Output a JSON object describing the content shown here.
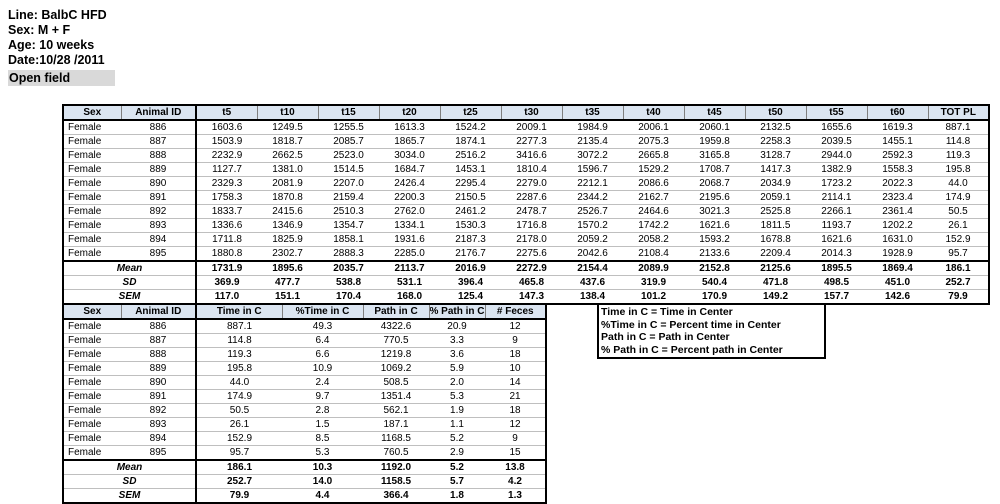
{
  "info": {
    "lines": [
      "Line: BalbC HFD",
      "Sex: M + F",
      "Age: 10 weeks",
      "Date:10/28 /2011"
    ],
    "highlight": "Open field"
  },
  "table1": {
    "headers": [
      "Sex",
      "Animal ID",
      "t5",
      "t10",
      "t15",
      "t20",
      "t25",
      "t30",
      "t35",
      "t40",
      "t45",
      "t50",
      "t55",
      "t60",
      "TOT PL"
    ],
    "rows": [
      {
        "sex": "Female",
        "id": "886",
        "values": [
          "1603.6",
          "1249.5",
          "1255.5",
          "1613.3",
          "1524.2",
          "2009.1",
          "1984.9",
          "2006.1",
          "2060.1",
          "2132.5",
          "1655.6",
          "1619.3",
          "887.1"
        ]
      },
      {
        "sex": "Female",
        "id": "887",
        "values": [
          "1503.9",
          "1818.7",
          "2085.7",
          "1865.7",
          "1874.1",
          "2277.3",
          "2135.4",
          "2075.3",
          "1959.8",
          "2258.3",
          "2039.5",
          "1455.1",
          "114.8"
        ]
      },
      {
        "sex": "Female",
        "id": "888",
        "values": [
          "2232.9",
          "2662.5",
          "2523.0",
          "3034.0",
          "2516.2",
          "3416.6",
          "3072.2",
          "2665.8",
          "3165.8",
          "3128.7",
          "2944.0",
          "2592.3",
          "119.3"
        ]
      },
      {
        "sex": "Female",
        "id": "889",
        "values": [
          "1127.7",
          "1381.0",
          "1514.5",
          "1684.7",
          "1453.1",
          "1810.4",
          "1596.7",
          "1529.2",
          "1708.7",
          "1417.3",
          "1382.9",
          "1558.3",
          "195.8"
        ]
      },
      {
        "sex": "Female",
        "id": "890",
        "values": [
          "2329.3",
          "2081.9",
          "2207.0",
          "2426.4",
          "2295.4",
          "2279.0",
          "2212.1",
          "2086.6",
          "2068.7",
          "2034.9",
          "1723.2",
          "2022.3",
          "44.0"
        ]
      },
      {
        "sex": "Female",
        "id": "891",
        "values": [
          "1758.3",
          "1870.8",
          "2159.4",
          "2200.3",
          "2150.5",
          "2287.6",
          "2344.2",
          "2162.7",
          "2195.6",
          "2059.1",
          "2114.1",
          "2323.4",
          "174.9"
        ]
      },
      {
        "sex": "Female",
        "id": "892",
        "values": [
          "1833.7",
          "2415.6",
          "2510.3",
          "2762.0",
          "2461.2",
          "2478.7",
          "2526.7",
          "2464.6",
          "3021.3",
          "2525.8",
          "2266.1",
          "2361.4",
          "50.5"
        ]
      },
      {
        "sex": "Female",
        "id": "893",
        "values": [
          "1336.6",
          "1346.9",
          "1354.7",
          "1334.1",
          "1530.3",
          "1716.8",
          "1570.2",
          "1742.2",
          "1621.6",
          "1811.5",
          "1193.7",
          "1202.2",
          "26.1"
        ]
      },
      {
        "sex": "Female",
        "id": "894",
        "values": [
          "1711.8",
          "1825.9",
          "1858.1",
          "1931.6",
          "2187.3",
          "2178.0",
          "2059.2",
          "2058.2",
          "1593.2",
          "1678.8",
          "1621.6",
          "1631.0",
          "152.9"
        ]
      },
      {
        "sex": "Female",
        "id": "895",
        "values": [
          "1880.8",
          "2302.7",
          "2888.3",
          "2285.0",
          "2176.7",
          "2275.6",
          "2042.6",
          "2108.4",
          "2133.6",
          "2209.4",
          "2014.3",
          "1928.9",
          "95.7"
        ]
      }
    ],
    "stats": [
      {
        "label": "Mean",
        "values": [
          "1731.9",
          "1895.6",
          "2035.7",
          "2113.7",
          "2016.9",
          "2272.9",
          "2154.4",
          "2089.9",
          "2152.8",
          "2125.6",
          "1895.5",
          "1869.4",
          "186.1"
        ]
      },
      {
        "label": "SD",
        "values": [
          "369.9",
          "477.7",
          "538.8",
          "531.1",
          "396.4",
          "465.8",
          "437.6",
          "319.9",
          "540.4",
          "471.8",
          "498.5",
          "451.0",
          "252.7"
        ]
      },
      {
        "label": "SEM",
        "values": [
          "117.0",
          "151.1",
          "170.4",
          "168.0",
          "125.4",
          "147.3",
          "138.4",
          "101.2",
          "170.9",
          "149.2",
          "157.7",
          "142.6",
          "79.9"
        ]
      }
    ]
  },
  "table2": {
    "headers": [
      "Sex",
      "Animal ID",
      "Time in C",
      "%Time in C",
      "Path in C",
      "% Path in C",
      "# Feces"
    ],
    "rows": [
      {
        "sex": "Female",
        "id": "886",
        "values": [
          "887.1",
          "49.3",
          "4322.6",
          "20.9",
          "12"
        ]
      },
      {
        "sex": "Female",
        "id": "887",
        "values": [
          "114.8",
          "6.4",
          "770.5",
          "3.3",
          "9"
        ]
      },
      {
        "sex": "Female",
        "id": "888",
        "values": [
          "119.3",
          "6.6",
          "1219.8",
          "3.6",
          "18"
        ]
      },
      {
        "sex": "Female",
        "id": "889",
        "values": [
          "195.8",
          "10.9",
          "1069.2",
          "5.9",
          "10"
        ]
      },
      {
        "sex": "Female",
        "id": "890",
        "values": [
          "44.0",
          "2.4",
          "508.5",
          "2.0",
          "14"
        ]
      },
      {
        "sex": "Female",
        "id": "891",
        "values": [
          "174.9",
          "9.7",
          "1351.4",
          "5.3",
          "21"
        ]
      },
      {
        "sex": "Female",
        "id": "892",
        "values": [
          "50.5",
          "2.8",
          "562.1",
          "1.9",
          "18"
        ]
      },
      {
        "sex": "Female",
        "id": "893",
        "values": [
          "26.1",
          "1.5",
          "187.1",
          "1.1",
          "12"
        ]
      },
      {
        "sex": "Female",
        "id": "894",
        "values": [
          "152.9",
          "8.5",
          "1168.5",
          "5.2",
          "9"
        ]
      },
      {
        "sex": "Female",
        "id": "895",
        "values": [
          "95.7",
          "5.3",
          "760.5",
          "2.9",
          "15"
        ]
      }
    ],
    "stats": [
      {
        "label": "Mean",
        "values": [
          "186.1",
          "10.3",
          "1192.0",
          "5.2",
          "13.8"
        ]
      },
      {
        "label": "SD",
        "values": [
          "252.7",
          "14.0",
          "1158.5",
          "5.7",
          "4.2"
        ]
      },
      {
        "label": "SEM",
        "values": [
          "79.9",
          "4.4",
          "366.4",
          "1.8",
          "1.3"
        ]
      }
    ]
  },
  "legend": {
    "lines": [
      "Time in C = Time in Center",
      "%Time in C = Percent time in Center",
      "Path in C = Path in Center",
      "% Path in C = Percent path in Center"
    ]
  },
  "colors": {
    "header_bg": "#dbe5f1",
    "highlight_bg": "#d9d9d9"
  }
}
